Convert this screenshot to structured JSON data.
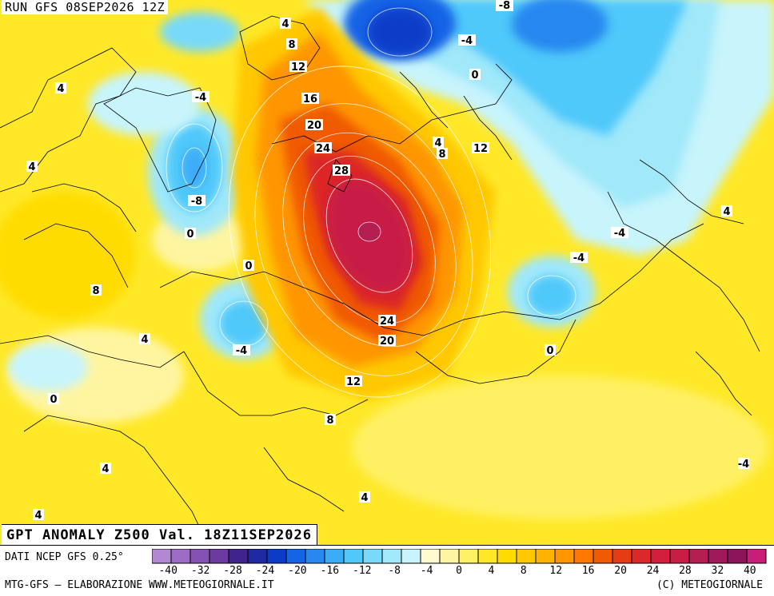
{
  "header": {
    "run_label": "RUN GFS 08SEP2026 12Z"
  },
  "title": "GPT ANOMALY Z500 Val. 18Z11SEP2026",
  "footer": {
    "source": "DATI NCEP GFS 0.25°",
    "credit": "MTG-GFS — ELABORAZIONE WWW.METEOGIORNALE.IT",
    "copyright": "(C) METEOGIORNALE"
  },
  "legend": {
    "colors": [
      "#b487d2",
      "#9c6cc4",
      "#8452b2",
      "#6c3aa0",
      "#40238c",
      "#1e28a0",
      "#0a3cc8",
      "#1464e6",
      "#2888f0",
      "#3cacf8",
      "#50c8fa",
      "#78daf8",
      "#a0e8fa",
      "#c8f4fc",
      "#fffad0",
      "#fff5a0",
      "#fff064",
      "#ffe828",
      "#ffdc00",
      "#ffc800",
      "#ffb400",
      "#ff9600",
      "#ff7800",
      "#f05a00",
      "#e63c14",
      "#dc2828",
      "#d21e3c",
      "#c81e46",
      "#b41e50",
      "#a0195a",
      "#8c145a",
      "#c81e78"
    ],
    "tick_labels": [
      "-40",
      "-32",
      "-28",
      "-24",
      "-20",
      "-16",
      "-12",
      "-8",
      "-4",
      "0",
      "4",
      "8",
      "12",
      "16",
      "20",
      "24",
      "28",
      "32",
      "40"
    ]
  },
  "contour_labels": [
    {
      "text": "-8"
    },
    {
      "text": "4"
    },
    {
      "text": "8"
    },
    {
      "text": "12"
    },
    {
      "text": "16"
    },
    {
      "text": "20"
    },
    {
      "text": "24"
    },
    {
      "text": "28"
    },
    {
      "text": "-4"
    },
    {
      "text": "0"
    },
    {
      "text": "4"
    },
    {
      "text": "8"
    },
    {
      "text": "12"
    },
    {
      "text": "-4"
    },
    {
      "text": "-8"
    },
    {
      "text": "4"
    },
    {
      "text": "0"
    },
    {
      "text": "0"
    },
    {
      "text": "8"
    },
    {
      "text": "4"
    },
    {
      "text": "-4"
    },
    {
      "text": "0"
    },
    {
      "text": "24"
    },
    {
      "text": "20"
    },
    {
      "text": "12"
    },
    {
      "text": "8"
    },
    {
      "text": "-4"
    },
    {
      "text": "-4"
    },
    {
      "text": "0"
    },
    {
      "text": "4"
    },
    {
      "text": "4"
    },
    {
      "text": "4"
    },
    {
      "text": "4"
    },
    {
      "text": "4"
    },
    {
      "text": "-4"
    }
  ]
}
